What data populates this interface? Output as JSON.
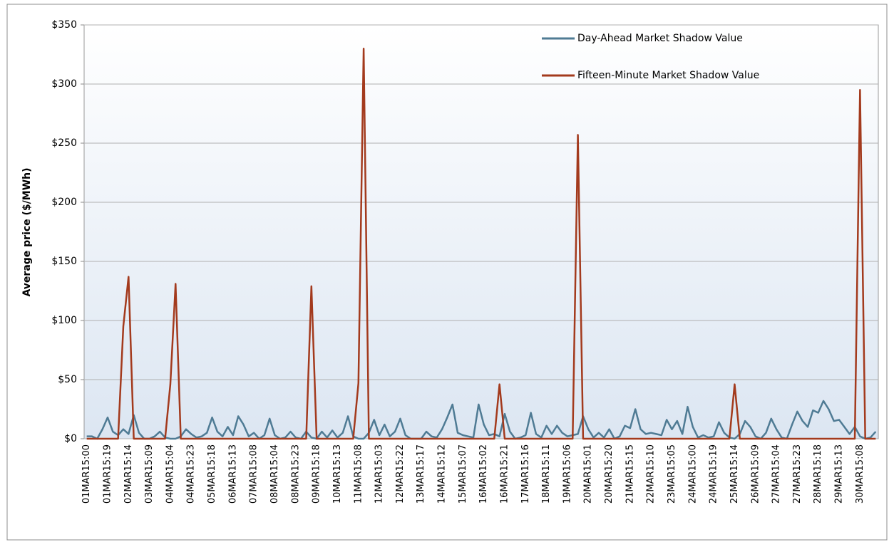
{
  "chart_data": {
    "type": "line",
    "ylabel": "Average price ($/MWh)",
    "categories": [
      "01MAR15:00",
      null,
      null,
      null,
      "01MAR15:19",
      null,
      null,
      null,
      "02MAR15:14",
      null,
      null,
      null,
      "03MAR15:09",
      null,
      null,
      null,
      "04MAR15:04",
      null,
      null,
      null,
      "04MAR15:23",
      null,
      null,
      null,
      "05MAR15:18",
      null,
      null,
      null,
      "06MAR15:13",
      null,
      null,
      null,
      "07MAR15:08",
      null,
      null,
      null,
      "08MAR15:04",
      null,
      null,
      null,
      "08MAR15:23",
      null,
      null,
      null,
      "09MAR15:18",
      null,
      null,
      null,
      "10MAR15:13",
      null,
      null,
      null,
      "11MAR15:08",
      null,
      null,
      null,
      "12MAR15:03",
      null,
      null,
      null,
      "12MAR15:22",
      null,
      null,
      null,
      "13MAR15:17",
      null,
      null,
      null,
      "14MAR15:12",
      null,
      null,
      null,
      "15MAR15:07",
      null,
      null,
      null,
      "16MAR15:02",
      null,
      null,
      null,
      "16MAR15:21",
      null,
      null,
      null,
      "17MAR15:16",
      null,
      null,
      null,
      "18MAR15:11",
      null,
      null,
      null,
      "19MAR15:06",
      null,
      null,
      null,
      "20MAR15:01",
      null,
      null,
      null,
      "20MAR15:20",
      null,
      null,
      null,
      "21MAR15:15",
      null,
      null,
      null,
      "22MAR15:10",
      null,
      null,
      null,
      "23MAR15:05",
      null,
      null,
      null,
      "24MAR15:00",
      null,
      null,
      null,
      "24MAR15:19",
      null,
      null,
      null,
      "25MAR15:14",
      null,
      null,
      null,
      "26MAR15:09",
      null,
      null,
      null,
      "27MAR15:04",
      null,
      null,
      null,
      "27MAR15:23",
      null,
      null,
      null,
      "28MAR15:18",
      null,
      null,
      null,
      "29MAR15:13",
      null,
      null,
      null,
      "30MAR15:08",
      null,
      null,
      null
    ],
    "series": [
      {
        "name": "Day-Ahead Market Shadow Value",
        "color": "#4f7b94",
        "values": [
          2,
          2,
          0,
          8,
          18,
          6,
          3,
          8,
          4,
          20,
          5,
          0,
          0,
          2,
          6,
          1,
          0,
          0,
          2,
          8,
          4,
          1,
          2,
          5,
          18,
          6,
          2,
          10,
          3,
          19,
          12,
          2,
          5,
          0,
          3,
          17,
          3,
          0,
          1,
          6,
          1,
          0,
          6,
          1,
          0,
          6,
          1,
          7,
          1,
          5,
          19,
          2,
          0,
          0,
          5,
          16,
          3,
          12,
          2,
          6,
          17,
          3,
          0,
          0,
          0,
          6,
          2,
          1,
          8,
          18,
          29,
          5,
          3,
          2,
          1,
          29,
          12,
          3,
          4,
          2,
          21,
          6,
          0,
          1,
          3,
          22,
          4,
          1,
          11,
          4,
          11,
          5,
          2,
          3,
          4,
          19,
          8,
          1,
          5,
          1,
          8,
          0,
          2,
          11,
          9,
          25,
          8,
          4,
          5,
          4,
          3,
          16,
          8,
          15,
          4,
          27,
          10,
          1,
          3,
          1,
          2,
          14,
          5,
          1,
          0,
          4,
          15,
          10,
          2,
          0,
          5,
          17,
          8,
          1,
          0,
          12,
          23,
          15,
          10,
          24,
          22,
          32,
          25,
          15,
          16,
          10,
          4,
          10,
          2,
          0,
          1,
          6
        ]
      },
      {
        "name": "Fifteen-Minute Market Shadow Value",
        "color": "#a33a1d",
        "values": [
          0,
          0,
          0,
          0,
          0,
          0,
          0,
          95,
          137,
          0,
          0,
          0,
          0,
          0,
          0,
          0,
          46,
          131,
          0,
          0,
          0,
          0,
          0,
          0,
          0,
          0,
          0,
          0,
          0,
          0,
          0,
          0,
          0,
          0,
          0,
          0,
          0,
          0,
          0,
          0,
          0,
          0,
          0,
          129,
          0,
          0,
          0,
          0,
          0,
          0,
          0,
          0,
          47,
          330,
          0,
          0,
          0,
          0,
          0,
          0,
          0,
          0,
          0,
          0,
          0,
          0,
          0,
          0,
          0,
          0,
          0,
          0,
          0,
          0,
          0,
          0,
          0,
          0,
          0,
          46,
          0,
          0,
          0,
          0,
          0,
          0,
          0,
          0,
          0,
          0,
          0,
          0,
          0,
          0,
          257,
          0,
          0,
          0,
          0,
          0,
          0,
          0,
          0,
          0,
          0,
          0,
          0,
          0,
          0,
          0,
          0,
          0,
          0,
          0,
          0,
          0,
          0,
          0,
          0,
          0,
          0,
          0,
          0,
          0,
          46,
          0,
          0,
          0,
          0,
          0,
          0,
          0,
          0,
          0,
          0,
          0,
          0,
          0,
          0,
          0,
          0,
          0,
          0,
          0,
          0,
          0,
          0,
          0,
          295,
          0,
          0,
          0
        ]
      }
    ],
    "ylim": [
      0,
      350
    ],
    "yticks": [
      {
        "value": 0,
        "label": "$0"
      },
      {
        "value": 50,
        "label": "$50"
      },
      {
        "value": 100,
        "label": "$100"
      },
      {
        "value": 150,
        "label": "$150"
      },
      {
        "value": 200,
        "label": "$200"
      },
      {
        "value": 250,
        "label": "$250"
      },
      {
        "value": 300,
        "label": "$300"
      },
      {
        "value": 350,
        "label": "$350"
      }
    ],
    "grid": true,
    "legend": "upper right"
  }
}
